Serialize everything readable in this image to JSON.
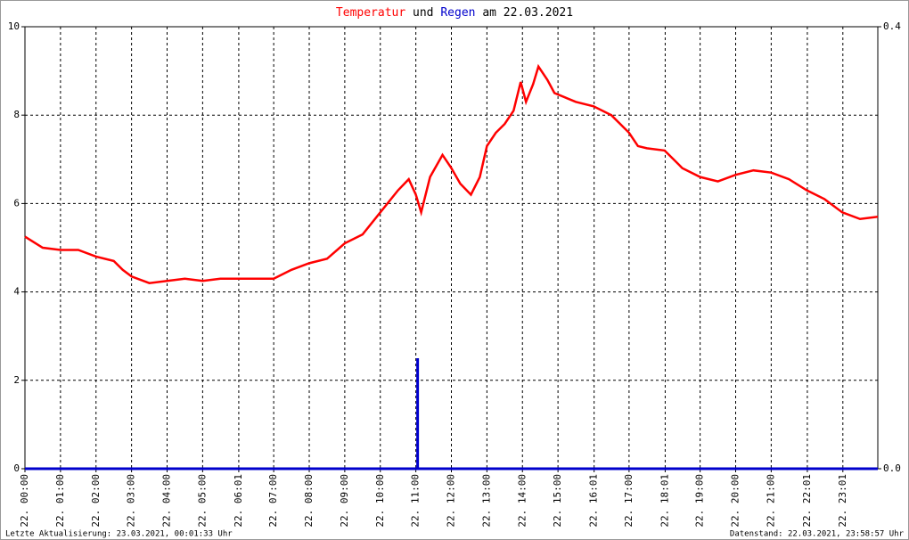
{
  "chart_data": {
    "type": "line",
    "title_parts": [
      "und",
      "am 22.03.2021"
    ],
    "footer_left": "Letzte Aktualisierung: 23.03.2021, 00:01:33 Uhr",
    "footer_right": "Datenstand: 22.03.2021, 23:58:57 Uhr",
    "xlim": [
      0,
      24
    ],
    "xticks": [
      {
        "value": 0,
        "label": "22. 00:00"
      },
      {
        "value": 1,
        "label": "22. 01:00"
      },
      {
        "value": 2,
        "label": "22. 02:00"
      },
      {
        "value": 3,
        "label": "22. 03:00"
      },
      {
        "value": 4,
        "label": "22. 04:00"
      },
      {
        "value": 5,
        "label": "22. 05:00"
      },
      {
        "value": 6.0167,
        "label": "22. 06:01"
      },
      {
        "value": 7,
        "label": "22. 07:00"
      },
      {
        "value": 8,
        "label": "22. 08:00"
      },
      {
        "value": 9,
        "label": "22. 09:00"
      },
      {
        "value": 10,
        "label": "22. 10:00"
      },
      {
        "value": 11,
        "label": "22. 11:00"
      },
      {
        "value": 12,
        "label": "22. 12:00"
      },
      {
        "value": 13,
        "label": "22. 13:00"
      },
      {
        "value": 14,
        "label": "22. 14:00"
      },
      {
        "value": 15,
        "label": "22. 15:00"
      },
      {
        "value": 16.0167,
        "label": "22. 16:01"
      },
      {
        "value": 17,
        "label": "22. 17:00"
      },
      {
        "value": 18.0167,
        "label": "22. 18:01"
      },
      {
        "value": 19,
        "label": "22. 19:00"
      },
      {
        "value": 20,
        "label": "22. 20:00"
      },
      {
        "value": 21,
        "label": "22. 21:00"
      },
      {
        "value": 22.0167,
        "label": "22. 22:01"
      },
      {
        "value": 23.0167,
        "label": "22. 23:01"
      }
    ],
    "ylim": [
      0,
      10
    ],
    "yticks": [
      0,
      2,
      4,
      6,
      8,
      10
    ],
    "y2lim": [
      0,
      0.4
    ],
    "y2ticks": [
      {
        "value": 0,
        "label": "0.0"
      },
      0.4
    ],
    "grid": true,
    "series": [
      {
        "name": "Temperatur",
        "color": "#ff0000",
        "type": "line",
        "x": [
          0,
          0.3,
          0.5,
          1,
          1.5,
          2,
          2.5,
          2.75,
          3,
          3.5,
          4,
          4.5,
          5,
          5.5,
          6,
          6.5,
          7,
          7.5,
          8,
          8.5,
          9,
          9.5,
          10,
          10.5,
          10.8,
          11.0,
          11.15,
          11.4,
          11.75,
          12.0,
          12.25,
          12.55,
          12.8,
          13.0,
          13.25,
          13.5,
          13.75,
          13.95,
          14.1,
          14.3,
          14.45,
          14.7,
          14.9,
          15.5,
          16,
          16.5,
          17,
          17.25,
          17.5,
          18,
          18.25,
          18.5,
          19,
          19.5,
          20,
          20.5,
          21,
          21.5,
          22,
          22.5,
          23,
          23.5,
          24
        ],
        "values": [
          5.25,
          5.1,
          5.0,
          4.95,
          4.95,
          4.8,
          4.7,
          4.5,
          4.35,
          4.2,
          4.25,
          4.3,
          4.25,
          4.3,
          4.3,
          4.3,
          4.3,
          4.5,
          4.65,
          4.75,
          5.1,
          5.3,
          5.8,
          6.3,
          6.55,
          6.2,
          5.8,
          6.6,
          7.1,
          6.8,
          6.45,
          6.2,
          6.6,
          7.3,
          7.6,
          7.8,
          8.1,
          8.75,
          8.3,
          8.7,
          9.1,
          8.8,
          8.5,
          8.3,
          8.2,
          8.0,
          7.6,
          7.3,
          7.25,
          7.2,
          7.0,
          6.8,
          6.6,
          6.5,
          6.65,
          6.75,
          6.7,
          6.55,
          6.3,
          6.1,
          5.8,
          5.65,
          5.7
        ]
      },
      {
        "name": "Regen",
        "color": "#0000cc",
        "type": "bar",
        "axis": "y2",
        "x": [
          11.05
        ],
        "values": [
          0.1
        ]
      }
    ]
  }
}
